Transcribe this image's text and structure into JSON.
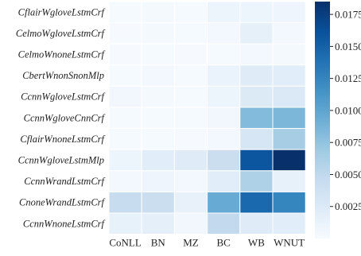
{
  "chart_data": {
    "type": "heatmap",
    "title": "",
    "xlabel": "",
    "ylabel": "",
    "columns": [
      "CoNLL",
      "BN",
      "MZ",
      "BC",
      "WB",
      "WNUT"
    ],
    "rows": [
      "CflairWgloveLstmCrf",
      "CelmoWgloveLstmCrf",
      "CelmoWnoneLstmCrf",
      "CbertWnonSnonMlp",
      "CcnnWgloveLstmCrf",
      "CcnnWgloveCnnCrf",
      "CflairWnoneLstmCrf",
      "CcnnWgloveLstmMlp",
      "CcnnWrandLstmCrf",
      "CnoneWrandLstmCrf",
      "CcnnWnoneLstmCrf"
    ],
    "values": [
      [
        0.0002,
        0.0003,
        0.0002,
        0.001,
        0.001,
        0.0008
      ],
      [
        0.0001,
        0.0003,
        0.0002,
        0.0004,
        0.0016,
        0.0005
      ],
      [
        0.0001,
        0.0002,
        0.0001,
        0.0002,
        0.0005,
        0.0003
      ],
      [
        0.0002,
        0.0004,
        0.0002,
        0.0012,
        0.0022,
        0.002
      ],
      [
        0.0006,
        0.0003,
        0.0002,
        0.001,
        0.0025,
        0.0026
      ],
      [
        0.0002,
        0.0002,
        0.0002,
        0.0006,
        0.0082,
        0.0085
      ],
      [
        0.0002,
        0.0002,
        0.0001,
        0.0005,
        0.003,
        0.0065
      ],
      [
        0.001,
        0.002,
        0.0022,
        0.0042,
        0.0158,
        0.0185
      ],
      [
        0.0005,
        0.0008,
        0.0004,
        0.002,
        0.006,
        0.0015
      ],
      [
        0.0045,
        0.0042,
        0.0014,
        0.0095,
        0.0145,
        0.0125
      ],
      [
        0.0015,
        0.0018,
        0.0006,
        0.0048,
        0.0022,
        0.002
      ]
    ],
    "colorbar": {
      "min": 0.0,
      "max": 0.0185,
      "ticks": [
        0.0025,
        0.005,
        0.0075,
        0.01,
        0.0125,
        0.015,
        0.0175
      ],
      "tick_labels": [
        "0.0025",
        "0.0050",
        "0.0075",
        "0.0100",
        "0.0125",
        "0.0150",
        "0.0175"
      ],
      "colormap": "Blues"
    },
    "grid": false,
    "cell_border_color": "#ffffff"
  }
}
